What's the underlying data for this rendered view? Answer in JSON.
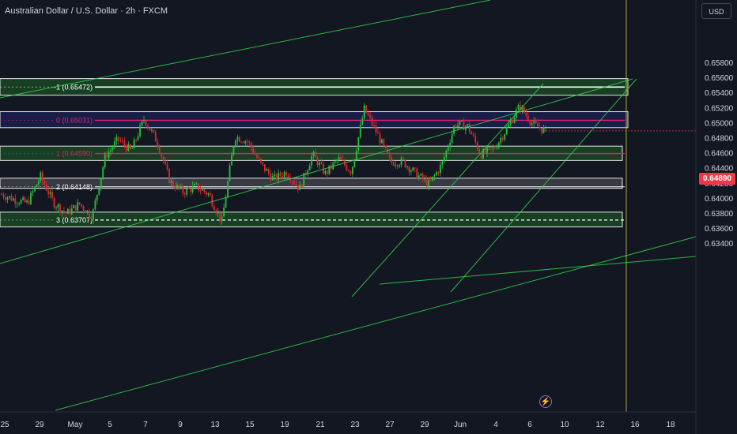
{
  "header": {
    "title": "Australian Dollar / U.S. Dollar · 2h · FXCM",
    "currency": "USD"
  },
  "last_price": "0.64890",
  "alert_icon": "lightning-bolt-icon",
  "colors": {
    "background": "#131722",
    "bull": "#26c13c",
    "bear": "#e0262f",
    "zone_green": "#1b4d24",
    "zone_blue": "#1c2257",
    "zone_gray": "#44464f",
    "fib_line": "#e91e63",
    "trend_line": "#2fd14a",
    "price_tag": "#f23645"
  },
  "chart_data": {
    "type": "candlestick",
    "title": "Australian Dollar / U.S. Dollar · 2h · FXCM",
    "x_tick_labels": [
      "25",
      "29",
      "May",
      "5",
      "7",
      "9",
      "13",
      "15",
      "19",
      "21",
      "23",
      "27",
      "29",
      "Jun",
      "4",
      "6",
      "10",
      "12",
      "16",
      "18"
    ],
    "y_tick_labels": [
      "0.65800",
      "0.65600",
      "0.65400",
      "0.65200",
      "0.65000",
      "0.64800",
      "0.64600",
      "0.64400",
      "0.64200",
      "0.64000",
      "0.63800",
      "0.63600",
      "0.63400"
    ],
    "ylim": [
      0.6332,
      0.6596
    ],
    "last_price": 0.6489,
    "fib_levels": [
      {
        "label": "-1 (0.65472)",
        "value": 0.65472
      },
      {
        "label": "0 (0.65031)",
        "value": 0.65031
      },
      {
        "label": "1 (0.64590)",
        "value": 0.6459
      },
      {
        "label": "2 (0.64148)",
        "value": 0.64148
      },
      {
        "label": "3 (0.63707)",
        "value": 0.63707
      }
    ],
    "zones": [
      {
        "color": "green",
        "y_from": 0.65364,
        "y_to": 0.65584
      },
      {
        "color": "blue",
        "y_from": 0.64933,
        "y_to": 0.65145
      },
      {
        "color": "green",
        "y_from": 0.64498,
        "y_to": 0.64688
      },
      {
        "color": "gray",
        "y_from": 0.64128,
        "y_to": 0.64262
      },
      {
        "color": "green",
        "y_from": 0.63616,
        "y_to": 0.63812
      }
    ],
    "trend_lines": 6,
    "candle_path": [
      {
        "date": "Apr 24",
        "close": 0.6405
      },
      {
        "date": "Apr 25",
        "close": 0.6398
      },
      {
        "date": "Apr 27",
        "close": 0.6393
      },
      {
        "date": "Apr 28",
        "close": 0.6429
      },
      {
        "date": "Apr 29",
        "close": 0.6394
      },
      {
        "date": "Apr 30",
        "close": 0.6379
      },
      {
        "date": "May 1",
        "close": 0.6392
      },
      {
        "date": "May 2",
        "close": 0.6376
      },
      {
        "date": "May 3",
        "close": 0.6455
      },
      {
        "date": "May 5",
        "close": 0.6478
      },
      {
        "date": "May 6",
        "close": 0.6462
      },
      {
        "date": "May 7",
        "close": 0.6505
      },
      {
        "date": "May 8",
        "close": 0.6475
      },
      {
        "date": "May 9",
        "close": 0.6422
      },
      {
        "date": "May 10",
        "close": 0.6408
      },
      {
        "date": "May 11",
        "close": 0.6415
      },
      {
        "date": "May 12",
        "close": 0.6405
      },
      {
        "date": "May 13",
        "close": 0.6368
      },
      {
        "date": "May 14",
        "close": 0.6482
      },
      {
        "date": "May 15",
        "close": 0.6475
      },
      {
        "date": "May 16",
        "close": 0.6445
      },
      {
        "date": "May 18",
        "close": 0.6425
      },
      {
        "date": "May 19",
        "close": 0.6435
      },
      {
        "date": "May 20",
        "close": 0.6412
      },
      {
        "date": "May 21",
        "close": 0.6458
      },
      {
        "date": "May 22",
        "close": 0.6432
      },
      {
        "date": "May 23",
        "close": 0.6452
      },
      {
        "date": "May 24",
        "close": 0.6435
      },
      {
        "date": "May 25",
        "close": 0.6518
      },
      {
        "date": "May 26",
        "close": 0.6485
      },
      {
        "date": "May 27",
        "close": 0.6448
      },
      {
        "date": "May 28",
        "close": 0.6448
      },
      {
        "date": "May 29",
        "close": 0.6432
      },
      {
        "date": "May 30",
        "close": 0.6418
      },
      {
        "date": "May 31",
        "close": 0.6445
      },
      {
        "date": "Jun 1",
        "close": 0.6498
      },
      {
        "date": "Jun 2",
        "close": 0.6495
      },
      {
        "date": "Jun 3",
        "close": 0.6458
      },
      {
        "date": "Jun 4",
        "close": 0.6465
      },
      {
        "date": "Jun 5",
        "close": 0.6492
      },
      {
        "date": "Jun 6",
        "close": 0.6522
      },
      {
        "date": "Jun 7",
        "close": 0.6498
      },
      {
        "date": "Jun 8",
        "close": 0.6489
      }
    ]
  }
}
